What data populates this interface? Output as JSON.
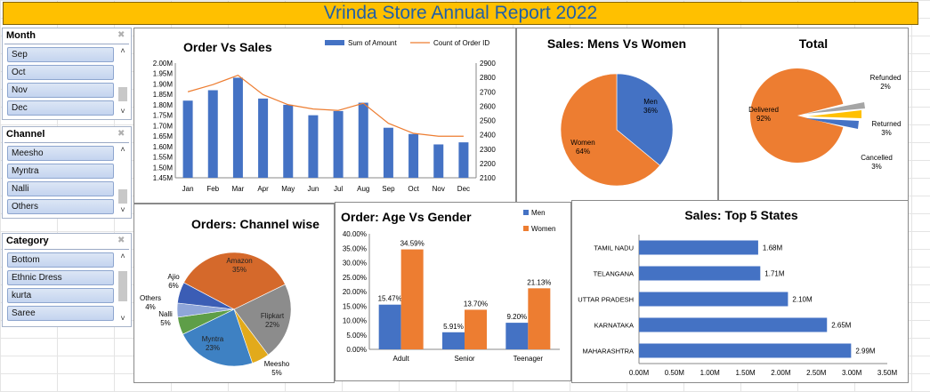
{
  "title": "Vrinda Store Annual Report 2022",
  "slicers": [
    {
      "name": "month",
      "header": "Month",
      "items": [
        "Sep",
        "Oct",
        "Nov",
        "Dec"
      ]
    },
    {
      "name": "channel",
      "header": "Channel",
      "items": [
        "Meesho",
        "Myntra",
        "Nalli",
        "Others"
      ]
    },
    {
      "name": "category",
      "header": "Category",
      "items": [
        "Bottom",
        "Ethnic Dress",
        "kurta",
        "Saree"
      ]
    }
  ],
  "icons": {
    "filter": "filter-icon",
    "scroll_up": "chevron-up-icon",
    "scroll_down": "chevron-down-icon"
  },
  "chart_data": [
    {
      "id": "order-vs-sales",
      "type": "bar-line",
      "title": "Order Vs Sales",
      "categories": [
        "Jan",
        "Feb",
        "Mar",
        "Apr",
        "May",
        "Jun",
        "Jul",
        "Aug",
        "Sep",
        "Oct",
        "Nov",
        "Dec"
      ],
      "series": [
        {
          "name": "Sum of Amount",
          "type": "bar",
          "axis": "left",
          "color": "#4472C4",
          "values": [
            1.82,
            1.87,
            1.93,
            1.83,
            1.8,
            1.75,
            1.77,
            1.81,
            1.69,
            1.66,
            1.61,
            1.62
          ]
        },
        {
          "name": "Count of Order ID",
          "type": "line",
          "axis": "right",
          "color": "#ED7D31",
          "values": [
            2700,
            2750,
            2815,
            2680,
            2610,
            2580,
            2570,
            2620,
            2480,
            2410,
            2390,
            2390
          ]
        }
      ],
      "yticks_left": [
        "1.45M",
        "1.50M",
        "1.55M",
        "1.60M",
        "1.65M",
        "1.70M",
        "1.75M",
        "1.80M",
        "1.85M",
        "1.90M",
        "1.95M",
        "2.00M"
      ],
      "yticks_right": [
        "2100",
        "2200",
        "2300",
        "2400",
        "2500",
        "2600",
        "2700",
        "2800",
        "2900"
      ],
      "ylim_left": [
        1.45,
        2.0
      ],
      "ylim_right": [
        2100,
        2900
      ],
      "legend": "top-right"
    },
    {
      "id": "mens-vs-women",
      "type": "pie",
      "title": "Sales: Mens Vs Women",
      "slices": [
        {
          "label": "Men",
          "value": 36,
          "pct": "36%",
          "color": "#4472C4"
        },
        {
          "label": "Women",
          "value": 64,
          "pct": "64%",
          "color": "#ED7D31"
        }
      ]
    },
    {
      "id": "order-status",
      "type": "pie",
      "title": "Total",
      "slices": [
        {
          "label": "Delivered",
          "value": 92,
          "pct": "92%",
          "color": "#ED7D31"
        },
        {
          "label": "Refunded",
          "value": 2,
          "pct": "2%",
          "color": "#A5A5A5"
        },
        {
          "label": "Returned",
          "value": 3,
          "pct": "3%",
          "color": "#FFC000"
        },
        {
          "label": "Cancelled",
          "value": 3,
          "pct": "3%",
          "color": "#4472C4"
        }
      ]
    },
    {
      "id": "channel-wise",
      "type": "pie",
      "title": "Orders: Channel wise",
      "slices": [
        {
          "label": "Amazon",
          "value": 35,
          "pct": "35%",
          "color": "#D5692B"
        },
        {
          "label": "Flipkart",
          "value": 22,
          "pct": "22%",
          "color": "#8C8C8C"
        },
        {
          "label": "Meesho",
          "value": 5,
          "pct": "5%",
          "color": "#E2AA1B"
        },
        {
          "label": "Myntra",
          "value": 23,
          "pct": "23%",
          "color": "#3E81C3"
        },
        {
          "label": "Nalli",
          "value": 5,
          "pct": "5%",
          "color": "#5E9E48"
        },
        {
          "label": "Others",
          "value": 4,
          "pct": "4%",
          "color": "#8FA6D9"
        },
        {
          "label": "Ajio",
          "value": 6,
          "pct": "6%",
          "color": "#3B5DB5"
        }
      ]
    },
    {
      "id": "age-vs-gender",
      "type": "bar",
      "title": "Order: Age Vs Gender",
      "categories": [
        "Adult",
        "Senior",
        "Teenager"
      ],
      "series": [
        {
          "name": "Men",
          "color": "#4472C4",
          "values": [
            15.47,
            5.91,
            9.2
          ],
          "labels": [
            "15.47%",
            "5.91%",
            "9.20%"
          ]
        },
        {
          "name": "Women",
          "color": "#ED7D31",
          "values": [
            34.59,
            13.7,
            21.13
          ],
          "labels": [
            "34.59%",
            "13.70%",
            "21.13%"
          ]
        }
      ],
      "yticks": [
        "0.00%",
        "5.00%",
        "10.00%",
        "15.00%",
        "20.00%",
        "25.00%",
        "30.00%",
        "35.00%",
        "40.00%"
      ],
      "ylim": [
        0,
        40
      ],
      "legend": "top-right"
    },
    {
      "id": "top-5-states",
      "type": "hbar",
      "title": "Sales: Top 5 States",
      "categories": [
        "TAMIL NADU",
        "TELANGANA",
        "UTTAR PRADESH",
        "KARNATAKA",
        "MAHARASHTRA"
      ],
      "values": [
        1.68,
        1.71,
        2.1,
        2.65,
        2.99
      ],
      "labels": [
        "1.68M",
        "1.71M",
        "2.10M",
        "2.65M",
        "2.99M"
      ],
      "color": "#4472C4",
      "xticks": [
        "0.00M",
        "0.50M",
        "1.00M",
        "1.50M",
        "2.00M",
        "2.50M",
        "3.00M",
        "3.50M"
      ],
      "xlim": [
        0,
        3.5
      ]
    }
  ]
}
